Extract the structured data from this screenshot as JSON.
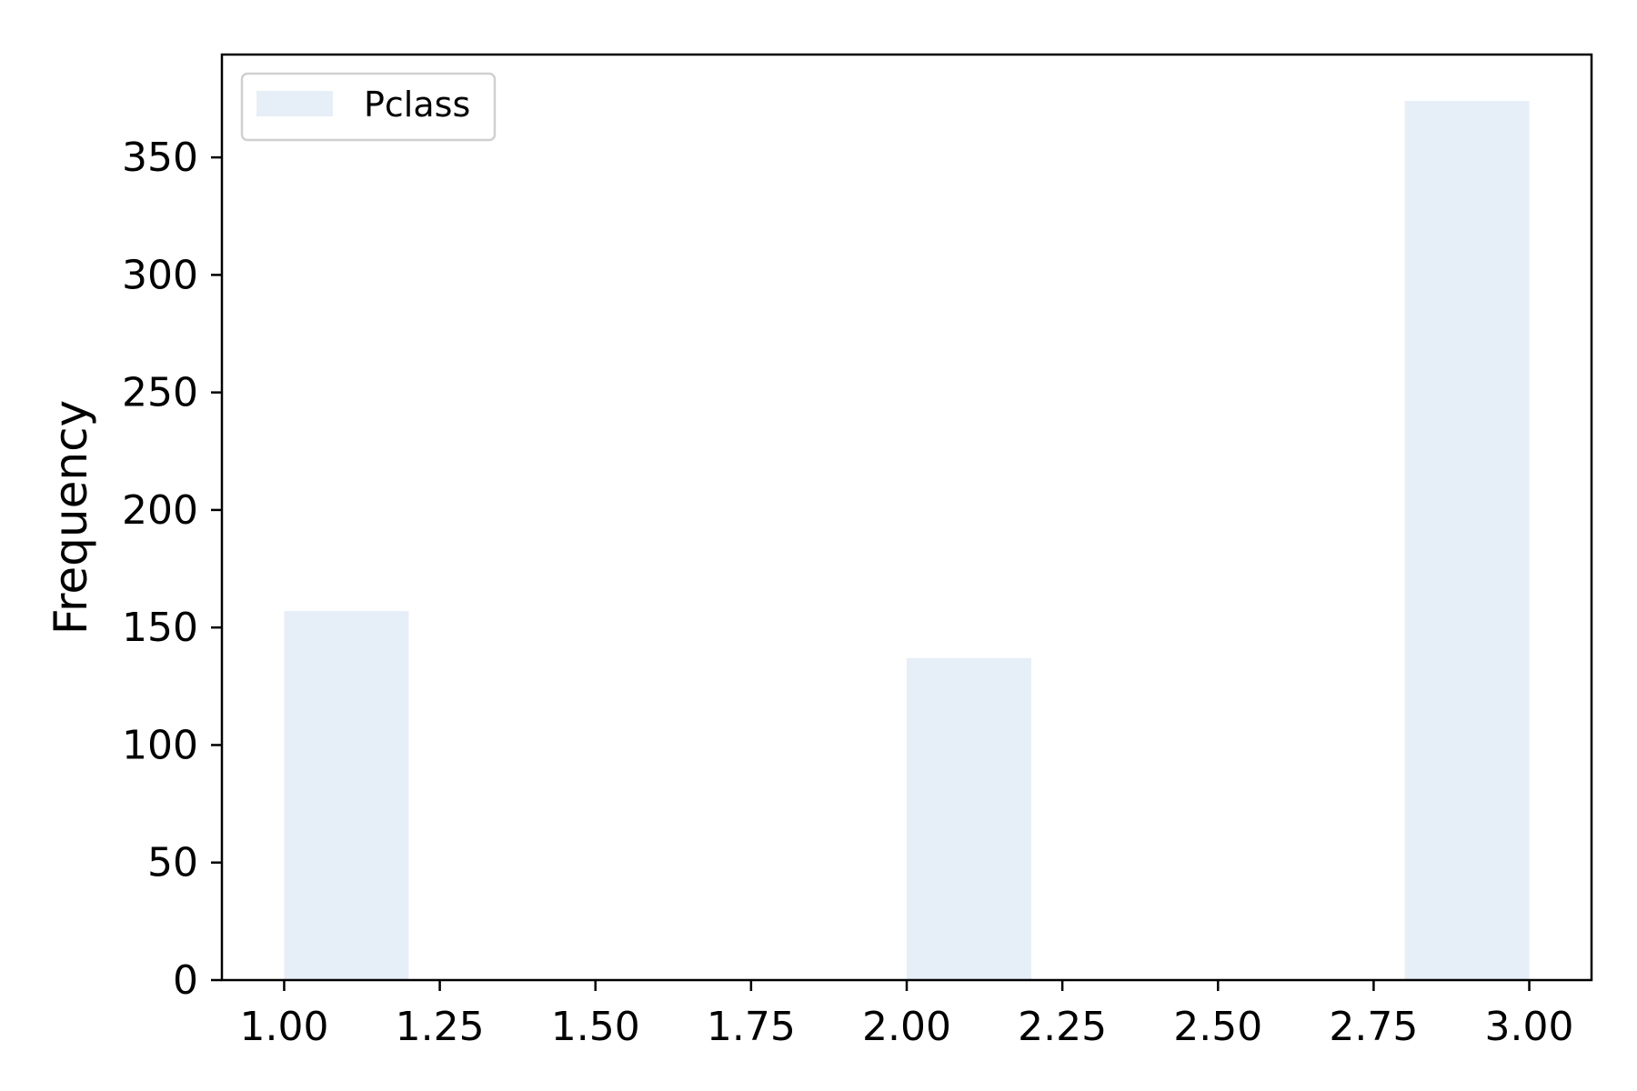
{
  "chart_data": {
    "type": "bar",
    "title": "",
    "xlabel": "",
    "ylabel": "Frequency",
    "xlim": [
      0.9,
      3.1
    ],
    "ylim": [
      0,
      393.75
    ],
    "grid": false,
    "legend": {
      "placement": "top-left",
      "entries": [
        "Pclass"
      ]
    },
    "bar_color": "#e6eef7",
    "series": [
      {
        "name": "Pclass",
        "bins": [
          {
            "x0": 1.0,
            "x1": 1.2,
            "value": 157
          },
          {
            "x0": 1.2,
            "x1": 1.4,
            "value": 0
          },
          {
            "x0": 1.4,
            "x1": 1.6,
            "value": 0
          },
          {
            "x0": 1.6,
            "x1": 1.8,
            "value": 0
          },
          {
            "x0": 1.8,
            "x1": 2.0,
            "value": 0
          },
          {
            "x0": 2.0,
            "x1": 2.2,
            "value": 137
          },
          {
            "x0": 2.2,
            "x1": 2.4,
            "value": 0
          },
          {
            "x0": 2.4,
            "x1": 2.6,
            "value": 0
          },
          {
            "x0": 2.6,
            "x1": 2.8,
            "value": 0
          },
          {
            "x0": 2.8,
            "x1": 3.0,
            "value": 374
          }
        ]
      }
    ],
    "xticks": [
      {
        "value": 1.0,
        "label": "1.00"
      },
      {
        "value": 1.25,
        "label": "1.25"
      },
      {
        "value": 1.5,
        "label": "1.50"
      },
      {
        "value": 1.75,
        "label": "1.75"
      },
      {
        "value": 2.0,
        "label": "2.00"
      },
      {
        "value": 2.25,
        "label": "2.25"
      },
      {
        "value": 2.5,
        "label": "2.50"
      },
      {
        "value": 2.75,
        "label": "2.75"
      },
      {
        "value": 3.0,
        "label": "3.00"
      }
    ],
    "yticks": [
      {
        "value": 0,
        "label": "0"
      },
      {
        "value": 50,
        "label": "50"
      },
      {
        "value": 100,
        "label": "100"
      },
      {
        "value": 150,
        "label": "150"
      },
      {
        "value": 200,
        "label": "200"
      },
      {
        "value": 250,
        "label": "250"
      },
      {
        "value": 300,
        "label": "300"
      },
      {
        "value": 350,
        "label": "350"
      }
    ]
  }
}
